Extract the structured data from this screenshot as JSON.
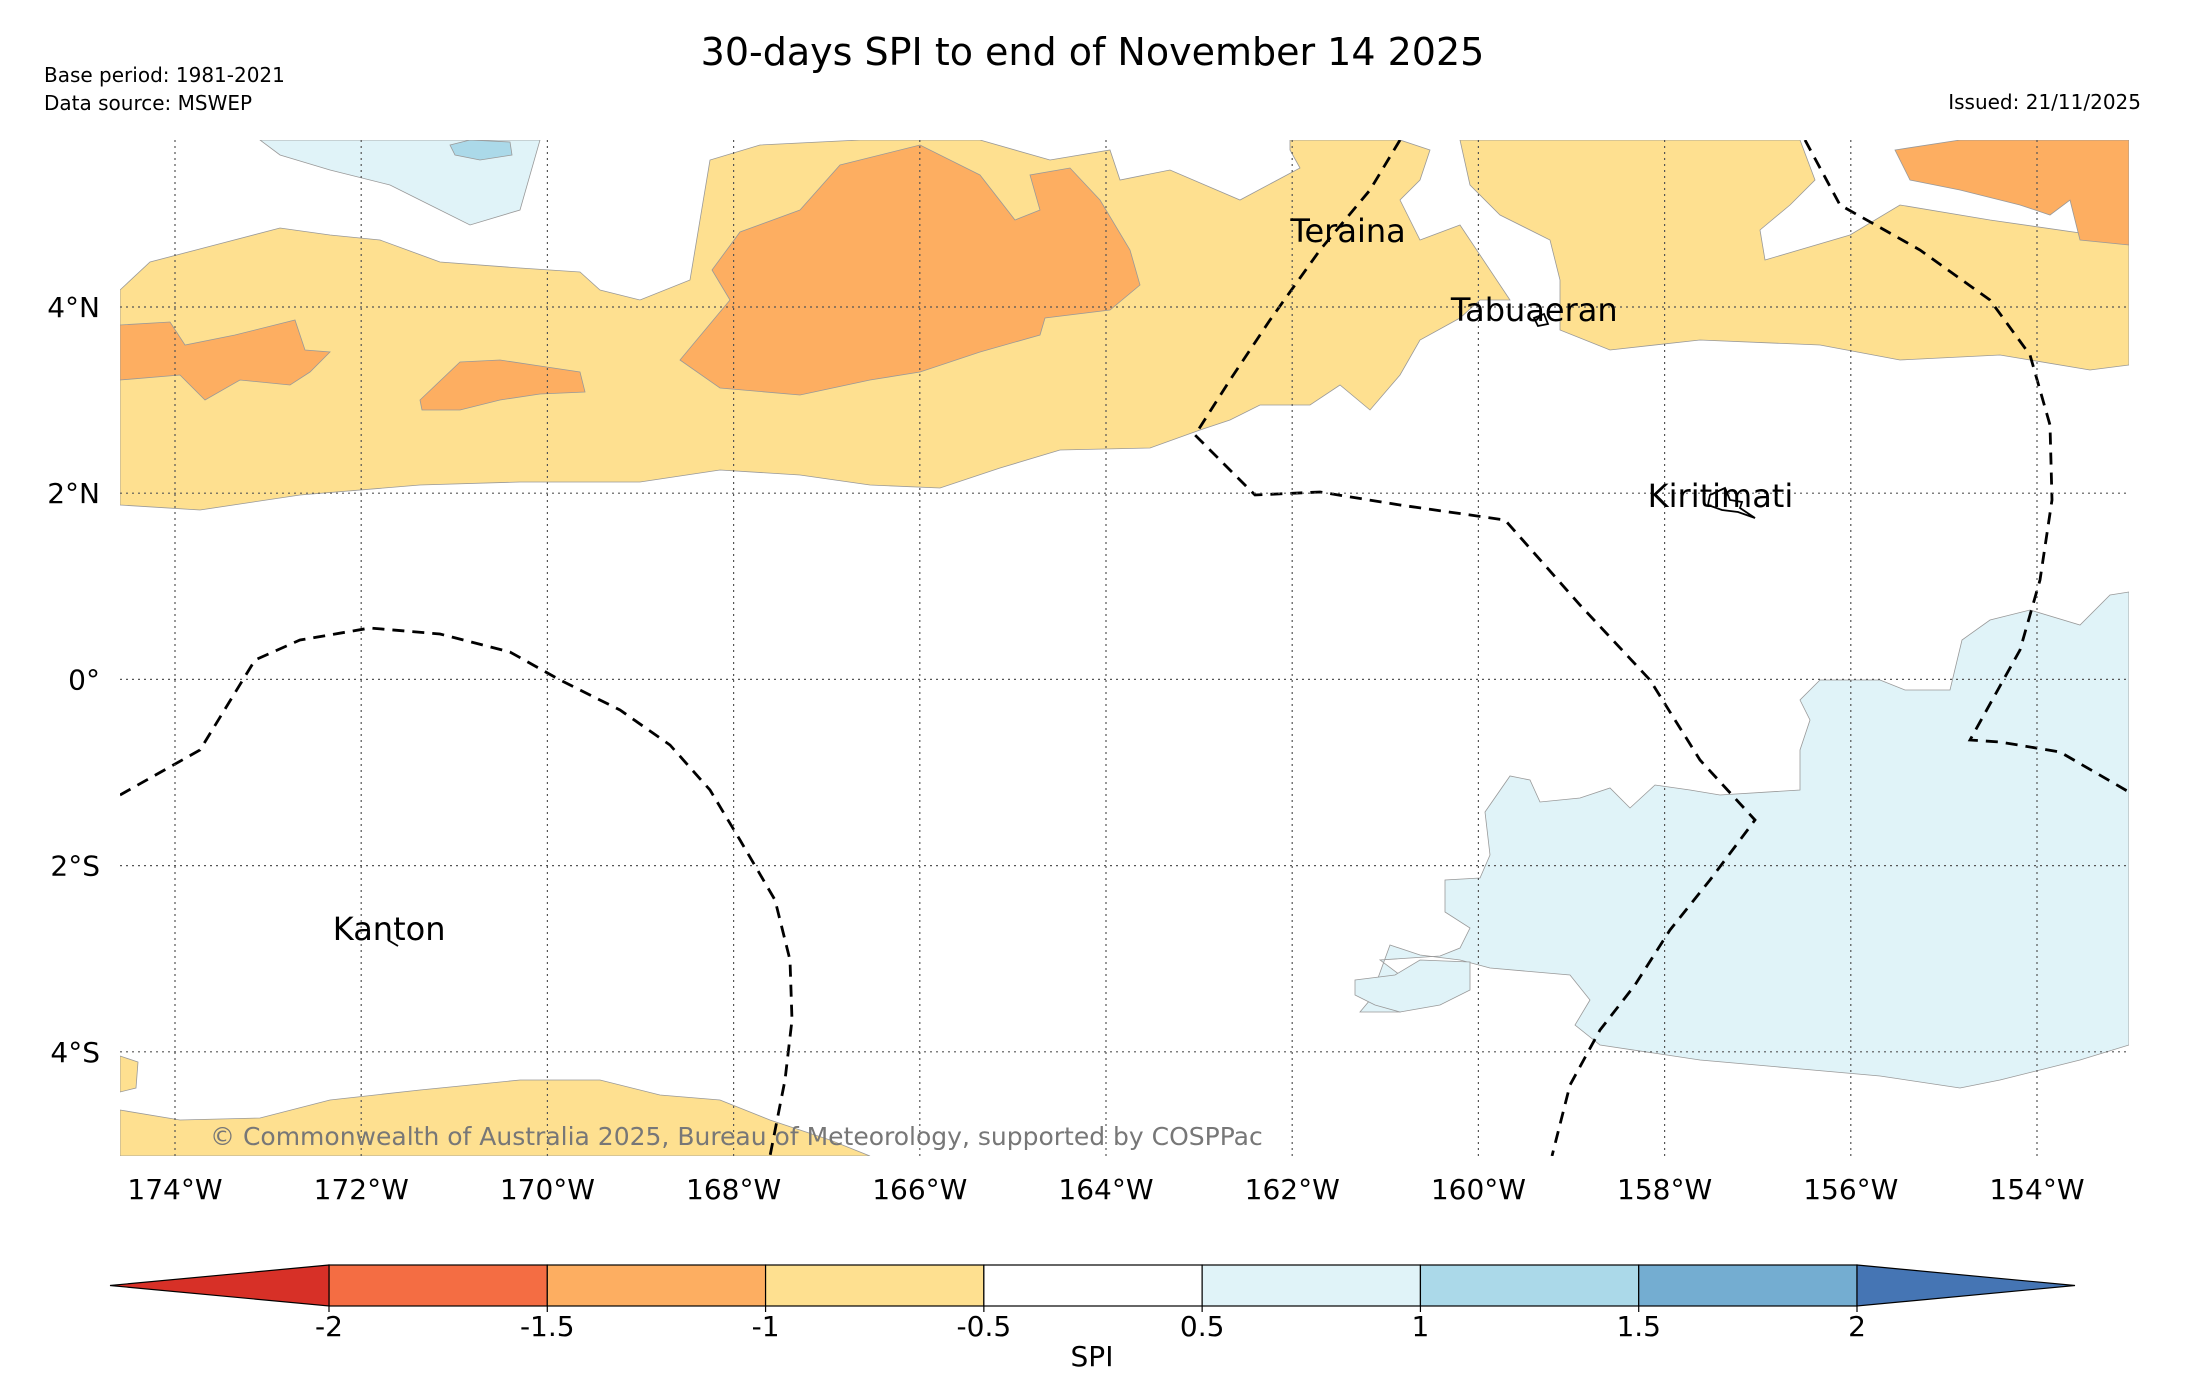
{
  "title": "30-days SPI to end of November 14 2025",
  "meta": {
    "base_period": "Base period: 1981-2021",
    "data_source": "Data source: MSWEP",
    "issued": "Issued: 21/11/2025"
  },
  "copyright": "© Commonwealth of Australia 2025, Bureau of Meteorology, supported by COSPPac",
  "map": {
    "lon_ticks": [
      {
        "lon": -174,
        "label": "174°W"
      },
      {
        "lon": -172,
        "label": "172°W"
      },
      {
        "lon": -170,
        "label": "170°W"
      },
      {
        "lon": -168,
        "label": "168°W"
      },
      {
        "lon": -166,
        "label": "166°W"
      },
      {
        "lon": -164,
        "label": "164°W"
      },
      {
        "lon": -162,
        "label": "162°W"
      },
      {
        "lon": -160,
        "label": "160°W"
      },
      {
        "lon": -158,
        "label": "158°W"
      },
      {
        "lon": -156,
        "label": "156°W"
      },
      {
        "lon": -154,
        "label": "154°W"
      }
    ],
    "lat_ticks": [
      {
        "lat": 4,
        "label": "4°N"
      },
      {
        "lat": 2,
        "label": "2°N"
      },
      {
        "lat": 0,
        "label": "0°"
      },
      {
        "lat": -2,
        "label": "2°S"
      },
      {
        "lat": -4,
        "label": "4°S"
      }
    ],
    "places": [
      {
        "name": "Teraina",
        "lon": -161.4,
        "lat": 4.7
      },
      {
        "name": "Tabuaeran",
        "lon": -159.4,
        "lat": 3.85
      },
      {
        "name": "Kiritimati",
        "lon": -157.4,
        "lat": 1.85
      },
      {
        "name": "Kanton",
        "lon": -171.7,
        "lat": -2.8
      }
    ]
  },
  "legend": {
    "label": "SPI",
    "bins": [
      {
        "from": -2.0,
        "to": -1.5,
        "color": "#f46d43"
      },
      {
        "from": -1.5,
        "to": -1.0,
        "color": "#fdae61"
      },
      {
        "from": -1.0,
        "to": -0.5,
        "color": "#fee090"
      },
      {
        "from": -0.5,
        "to": 0.5,
        "color": "#ffffff"
      },
      {
        "from": 0.5,
        "to": 1.0,
        "color": "#e0f3f8"
      },
      {
        "from": 1.0,
        "to": 1.5,
        "color": "#abd9e9"
      },
      {
        "from": 1.5,
        "to": 2.0,
        "color": "#74add1"
      }
    ],
    "under_color": "#d73027",
    "over_color": "#4575b4",
    "ticks": [
      "-2",
      "-1.5",
      "-1",
      "-0.5",
      "0.5",
      "1",
      "1.5",
      "2"
    ]
  }
}
